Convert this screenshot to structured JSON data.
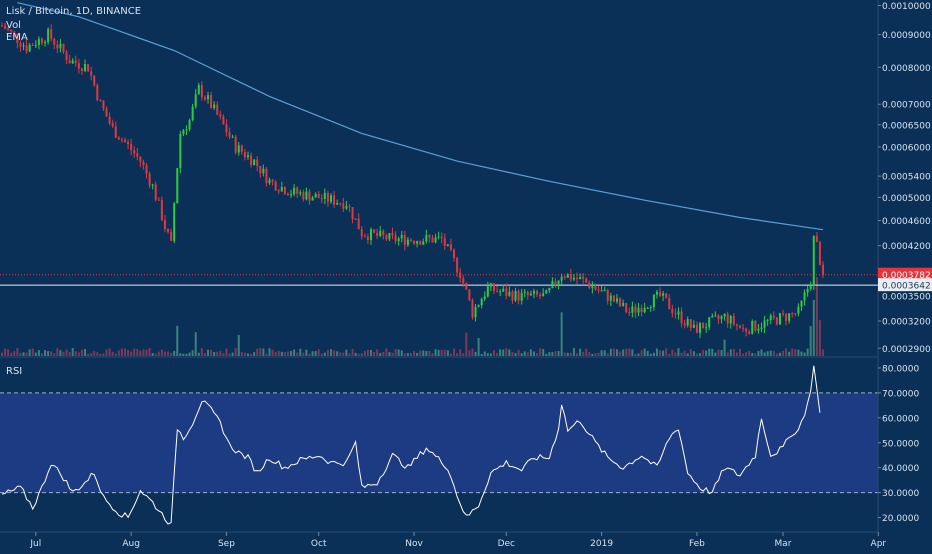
{
  "header": {
    "title": "Lisk / Bitcoin, 1D, BINANCE",
    "studies": [
      "Vol",
      "EMA"
    ]
  },
  "rsi_panel": {
    "label": "RSI"
  },
  "colors": {
    "background": "#0b3057",
    "rsi_band": "#213d8a",
    "up": "#2ecc40",
    "down": "#e0383e",
    "ema": "#5a9fd6",
    "rsi_line": "#ffffff",
    "current_price": "#e8343a",
    "reference_line": "#e6eef6"
  },
  "chart_data": [
    {
      "type": "candlestick",
      "title": "Lisk / Bitcoin, 1D, BINANCE",
      "x_axis_labels": [
        "Jul",
        "Aug",
        "Sep",
        "Oct",
        "Nov",
        "Dec",
        "2019",
        "Feb",
        "Mar",
        "Apr"
      ],
      "y_scale": "log",
      "ylim": [
        0.000282,
        0.00102
      ],
      "y_tick_labels": [
        "0.0010000",
        "0.0009000",
        "0.0008000",
        "0.0007000",
        "0.0006500",
        "0.0006000",
        "0.0005400",
        "0.0005000",
        "0.0004600",
        "0.0004200",
        "0.0003200",
        "0.0002900"
      ],
      "price_path": [
        [
          "2018-06-20",
          0.00093
        ],
        [
          "2018-06-28",
          0.00086
        ],
        [
          "2018-07-05",
          0.0009
        ],
        [
          "2018-07-12",
          0.00082
        ],
        [
          "2018-07-18",
          0.0008
        ],
        [
          "2018-07-22",
          0.0007
        ],
        [
          "2018-07-26",
          0.00064
        ],
        [
          "2018-07-30",
          0.00061
        ],
        [
          "2018-08-04",
          0.00057
        ],
        [
          "2018-08-08",
          0.00052
        ],
        [
          "2018-08-12",
          0.00045
        ],
        [
          "2018-08-14",
          0.00042
        ],
        [
          "2018-08-17",
          0.00063
        ],
        [
          "2018-08-20",
          0.00066
        ],
        [
          "2018-08-23",
          0.00074
        ],
        [
          "2018-08-26",
          0.00071
        ],
        [
          "2018-08-30",
          0.00066
        ],
        [
          "2018-09-04",
          0.0006
        ],
        [
          "2018-09-10",
          0.00057
        ],
        [
          "2018-09-15",
          0.00053
        ],
        [
          "2018-09-22",
          0.00051
        ],
        [
          "2018-10-01",
          0.0005
        ],
        [
          "2018-10-10",
          0.00049
        ],
        [
          "2018-10-15",
          0.00044
        ],
        [
          "2018-10-25",
          0.00043
        ],
        [
          "2018-11-05",
          0.00043
        ],
        [
          "2018-11-10",
          0.00043
        ],
        [
          "2018-11-16",
          0.00038
        ],
        [
          "2018-11-20",
          0.00033
        ],
        [
          "2018-11-25",
          0.00036
        ],
        [
          "2018-12-05",
          0.00035
        ],
        [
          "2018-12-14",
          0.00035
        ],
        [
          "2018-12-19",
          0.00038
        ],
        [
          "2018-12-26",
          0.00037
        ],
        [
          "2019-01-03",
          0.00035
        ],
        [
          "2019-01-10",
          0.00033
        ],
        [
          "2019-01-20",
          0.00035
        ],
        [
          "2019-01-25",
          0.00033
        ],
        [
          "2019-01-31",
          0.00031
        ],
        [
          "2019-02-10",
          0.000325
        ],
        [
          "2019-02-16",
          0.00031
        ],
        [
          "2019-02-25",
          0.00032
        ],
        [
          "2019-03-06",
          0.00033
        ],
        [
          "2019-03-10",
          0.00037
        ],
        [
          "2019-03-11",
          0.00043
        ],
        [
          "2019-03-12",
          0.00042
        ],
        [
          "2019-03-14",
          0.000378
        ]
      ],
      "ema_path": [
        [
          "2018-06-25",
          0.00101
        ],
        [
          "2018-07-15",
          0.00096
        ],
        [
          "2018-08-15",
          0.00085
        ],
        [
          "2018-09-15",
          0.00072
        ],
        [
          "2018-10-15",
          0.00063
        ],
        [
          "2018-11-15",
          0.00057
        ],
        [
          "2018-12-15",
          0.00053
        ],
        [
          "2019-01-15",
          0.000495
        ],
        [
          "2019-02-15",
          0.000465
        ],
        [
          "2019-03-14",
          0.000445
        ]
      ],
      "current_price_label": "0.0003782",
      "reference_line_label": "0.0003642",
      "hidden_tick_label": "0.0003500",
      "volume_spikes": [
        [
          "2018-08-16",
          4
        ],
        [
          "2018-08-22",
          3
        ],
        [
          "2018-09-05",
          3
        ],
        [
          "2018-11-18",
          3
        ],
        [
          "2018-11-22",
          2.5
        ],
        [
          "2018-12-19",
          6
        ],
        [
          "2019-02-10",
          2
        ],
        [
          "2019-03-10",
          4
        ],
        [
          "2019-03-11",
          8
        ],
        [
          "2019-03-12",
          11
        ],
        [
          "2019-03-13",
          5
        ]
      ]
    },
    {
      "type": "line",
      "title": "RSI",
      "ylim": [
        15,
        84
      ],
      "y_tick_labels": [
        "80.0000",
        "70.0000",
        "60.0000",
        "50.0000",
        "40.0000",
        "30.0000",
        "20.0000"
      ],
      "bands": [
        30,
        70
      ],
      "rsi_path": [
        [
          "2018-06-20",
          29
        ],
        [
          "2018-06-26",
          32
        ],
        [
          "2018-06-30",
          24
        ],
        [
          "2018-07-03",
          32
        ],
        [
          "2018-07-06",
          42
        ],
        [
          "2018-07-10",
          36
        ],
        [
          "2018-07-13",
          30
        ],
        [
          "2018-07-17",
          34
        ],
        [
          "2018-07-20",
          38
        ],
        [
          "2018-07-23",
          28
        ],
        [
          "2018-07-28",
          22
        ],
        [
          "2018-07-31",
          20
        ],
        [
          "2018-08-04",
          31
        ],
        [
          "2018-08-08",
          26
        ],
        [
          "2018-08-12",
          20
        ],
        [
          "2018-08-14",
          17
        ],
        [
          "2018-08-16",
          56
        ],
        [
          "2018-08-18",
          52
        ],
        [
          "2018-08-21",
          58
        ],
        [
          "2018-08-24",
          67
        ],
        [
          "2018-08-27",
          63
        ],
        [
          "2018-08-30",
          58
        ],
        [
          "2018-09-02",
          49
        ],
        [
          "2018-09-05",
          46
        ],
        [
          "2018-09-08",
          44
        ],
        [
          "2018-09-11",
          38
        ],
        [
          "2018-09-15",
          44
        ],
        [
          "2018-09-20",
          40
        ],
        [
          "2018-09-25",
          43
        ],
        [
          "2018-10-01",
          45
        ],
        [
          "2018-10-05",
          42
        ],
        [
          "2018-10-10",
          42
        ],
        [
          "2018-10-13",
          50
        ],
        [
          "2018-10-15",
          32
        ],
        [
          "2018-10-20",
          34
        ],
        [
          "2018-10-25",
          45
        ],
        [
          "2018-10-30",
          40
        ],
        [
          "2018-11-05",
          48
        ],
        [
          "2018-11-12",
          40
        ],
        [
          "2018-11-15",
          29
        ],
        [
          "2018-11-18",
          20
        ],
        [
          "2018-11-22",
          25
        ],
        [
          "2018-11-26",
          38
        ],
        [
          "2018-12-01",
          42
        ],
        [
          "2018-12-06",
          39
        ],
        [
          "2018-12-10",
          44
        ],
        [
          "2018-12-15",
          44
        ],
        [
          "2018-12-18",
          56
        ],
        [
          "2018-12-19",
          66
        ],
        [
          "2018-12-21",
          55
        ],
        [
          "2018-12-25",
          59
        ],
        [
          "2018-12-30",
          50
        ],
        [
          "2019-01-03",
          44
        ],
        [
          "2019-01-08",
          40
        ],
        [
          "2019-01-14",
          45
        ],
        [
          "2019-01-19",
          40
        ],
        [
          "2019-01-23",
          52
        ],
        [
          "2019-01-26",
          56
        ],
        [
          "2019-01-29",
          38
        ],
        [
          "2019-02-02",
          32
        ],
        [
          "2019-02-06",
          30
        ],
        [
          "2019-02-10",
          40
        ],
        [
          "2019-02-15",
          37
        ],
        [
          "2019-02-20",
          45
        ],
        [
          "2019-02-22",
          60
        ],
        [
          "2019-02-25",
          45
        ],
        [
          "2019-03-01",
          48
        ],
        [
          "2019-03-04",
          54
        ],
        [
          "2019-03-06",
          55
        ],
        [
          "2019-03-08",
          62
        ],
        [
          "2019-03-10",
          70
        ],
        [
          "2019-03-11",
          82
        ],
        [
          "2019-03-12",
          71
        ],
        [
          "2019-03-13",
          63
        ]
      ]
    }
  ]
}
